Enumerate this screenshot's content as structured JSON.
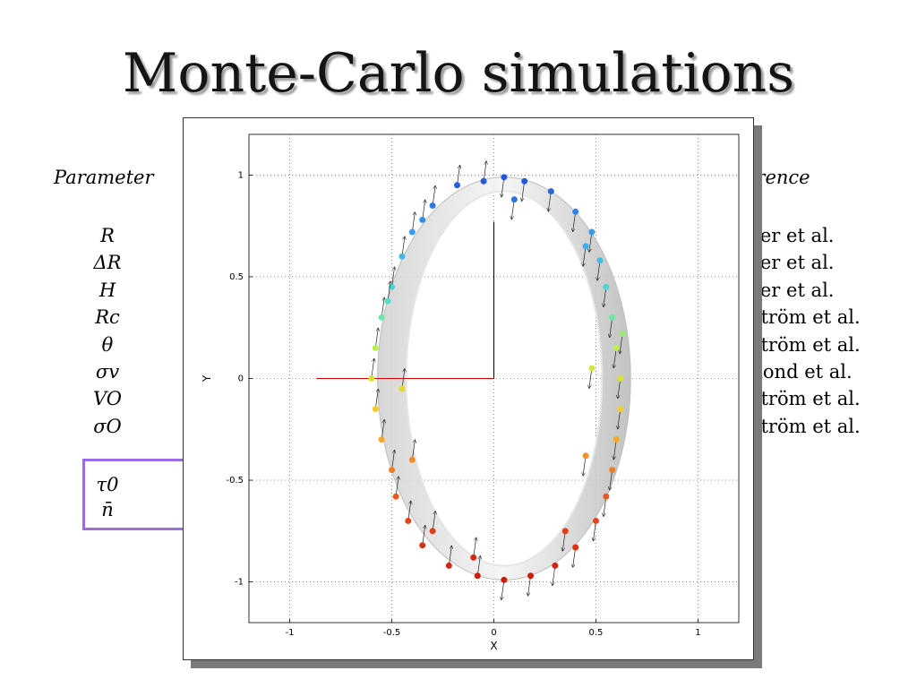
{
  "slide": {
    "title": "Monte-Carlo simulations",
    "param_header": "Parameter",
    "ref_header": "erence",
    "parameters": [
      "R",
      "ΔR",
      "H",
      "Rc",
      "θ",
      "σv",
      "VO",
      "σO"
    ],
    "references": [
      "tter et al.",
      "tter et al.",
      "tter et al.",
      "lström et al.",
      "lström et al.",
      "mond et al.",
      "lström et al.",
      "lström et al."
    ],
    "extra_parameters": [
      "τ0",
      "n̄"
    ],
    "colors": {
      "highlight_box": "#9b6be0"
    }
  },
  "chart_data": {
    "type": "scatter",
    "title": "",
    "xlabel": "X",
    "ylabel": "Y",
    "xlim": [
      -1.2,
      1.2
    ],
    "ylim": [
      -1.2,
      1.2
    ],
    "xticks": [
      -1,
      -0.5,
      0,
      0.5,
      1
    ],
    "yticks": [
      -1,
      -0.5,
      0,
      0.5,
      1
    ],
    "xtick_labels": [
      "-1",
      "-0.5",
      "0",
      "0.5",
      "1"
    ],
    "ytick_labels": [
      "-1",
      "-0.5",
      "0",
      "0.5",
      "1"
    ],
    "grid": true,
    "grid_style": "dotted",
    "description_points": "simulated stars on a tilted ring, colored by Y (blue top, red bottom) with velocity arrows",
    "axes_lines": [
      {
        "from": [
          0,
          0
        ],
        "to": [
          0,
          0.77
        ],
        "color": "#000000"
      },
      {
        "from": [
          0,
          0
        ],
        "to": [
          -0.87,
          0
        ],
        "color": "#cc0000"
      }
    ],
    "ring": {
      "center": [
        0.05,
        0
      ],
      "x_radius_outer": 0.62,
      "x_radius_inner": 0.48,
      "y_radius": 0.99
    },
    "points": [
      {
        "x": -0.18,
        "y": 0.95
      },
      {
        "x": -0.05,
        "y": 0.97
      },
      {
        "x": 0.05,
        "y": 0.99
      },
      {
        "x": 0.15,
        "y": 0.97
      },
      {
        "x": 0.28,
        "y": 0.92
      },
      {
        "x": 0.4,
        "y": 0.82
      },
      {
        "x": 0.48,
        "y": 0.72
      },
      {
        "x": -0.3,
        "y": 0.85
      },
      {
        "x": -0.4,
        "y": 0.72
      },
      {
        "x": -0.45,
        "y": 0.6
      },
      {
        "x": 0.52,
        "y": 0.58
      },
      {
        "x": 0.55,
        "y": 0.45
      },
      {
        "x": -0.5,
        "y": 0.45
      },
      {
        "x": -0.55,
        "y": 0.3
      },
      {
        "x": 0.58,
        "y": 0.3
      },
      {
        "x": 0.6,
        "y": 0.15
      },
      {
        "x": -0.58,
        "y": 0.15
      },
      {
        "x": -0.6,
        "y": 0.0
      },
      {
        "x": 0.62,
        "y": 0.0
      },
      {
        "x": 0.62,
        "y": -0.15
      },
      {
        "x": -0.58,
        "y": -0.15
      },
      {
        "x": -0.55,
        "y": -0.3
      },
      {
        "x": 0.6,
        "y": -0.3
      },
      {
        "x": 0.58,
        "y": -0.45
      },
      {
        "x": -0.5,
        "y": -0.45
      },
      {
        "x": -0.48,
        "y": -0.58
      },
      {
        "x": 0.55,
        "y": -0.58
      },
      {
        "x": 0.5,
        "y": -0.7
      },
      {
        "x": -0.42,
        "y": -0.7
      },
      {
        "x": -0.35,
        "y": -0.82
      },
      {
        "x": 0.4,
        "y": -0.83
      },
      {
        "x": 0.3,
        "y": -0.92
      },
      {
        "x": -0.22,
        "y": -0.92
      },
      {
        "x": -0.08,
        "y": -0.97
      },
      {
        "x": 0.05,
        "y": -0.99
      },
      {
        "x": 0.18,
        "y": -0.97
      },
      {
        "x": -0.35,
        "y": 0.78
      },
      {
        "x": 0.45,
        "y": 0.65
      },
      {
        "x": -0.52,
        "y": 0.38
      },
      {
        "x": 0.63,
        "y": 0.22
      },
      {
        "x": -0.45,
        "y": -0.05
      },
      {
        "x": 0.48,
        "y": 0.05
      },
      {
        "x": -0.4,
        "y": -0.4
      },
      {
        "x": 0.45,
        "y": -0.38
      },
      {
        "x": -0.3,
        "y": -0.75
      },
      {
        "x": 0.35,
        "y": -0.75
      },
      {
        "x": 0.1,
        "y": 0.88
      },
      {
        "x": -0.1,
        "y": -0.88
      }
    ]
  }
}
